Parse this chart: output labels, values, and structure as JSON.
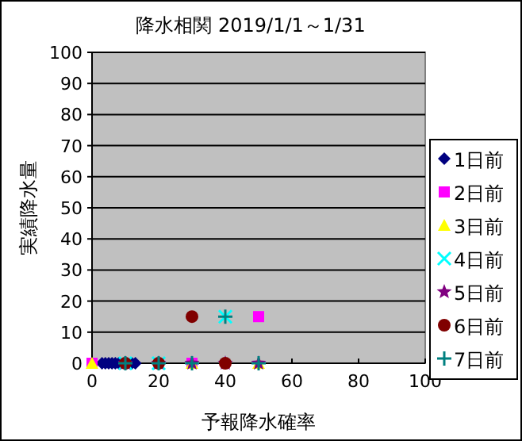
{
  "chart_data": {
    "type": "scatter",
    "title": "降水相関 2019/1/1～1/31",
    "xlabel": "予報降水確率",
    "ylabel": "実績降水量",
    "xlim": [
      0,
      100
    ],
    "xticks": [
      0,
      20,
      40,
      60,
      80,
      100
    ],
    "ylim": [
      0,
      100
    ],
    "yticks": [
      0,
      10,
      20,
      30,
      40,
      50,
      60,
      70,
      80,
      90,
      100
    ],
    "grid": "y",
    "legend": "right",
    "series": [
      {
        "name": "1日前",
        "color": "#000080",
        "marker": "diamond",
        "x": [
          3,
          4,
          5,
          6,
          7,
          8,
          12,
          13
        ],
        "values": [
          0,
          0,
          0,
          0,
          0,
          0,
          0,
          0
        ]
      },
      {
        "name": "2日前",
        "color": "#ff00ff",
        "marker": "square",
        "x": [
          0,
          30,
          50
        ],
        "values": [
          0,
          0,
          15
        ]
      },
      {
        "name": "3日前",
        "color": "#ffff00",
        "marker": "triangle",
        "x": [
          0,
          30,
          50
        ],
        "values": [
          0,
          0,
          0
        ]
      },
      {
        "name": "4日前",
        "color": "#00ffff",
        "marker": "cross",
        "x": [
          10,
          20,
          40
        ],
        "values": [
          0,
          0,
          15
        ]
      },
      {
        "name": "5日前",
        "color": "#800080",
        "marker": "star",
        "x": [
          10,
          20,
          30,
          40,
          50
        ],
        "values": [
          0,
          0,
          0,
          0,
          0
        ]
      },
      {
        "name": "6日前",
        "color": "#800000",
        "marker": "circle",
        "x": [
          10,
          20,
          30,
          40
        ],
        "values": [
          0,
          0,
          15,
          0
        ]
      },
      {
        "name": "7日前",
        "color": "#008080",
        "marker": "plus",
        "x": [
          10,
          20,
          30,
          40,
          50
        ],
        "values": [
          0,
          0,
          0,
          15,
          0
        ]
      }
    ]
  }
}
